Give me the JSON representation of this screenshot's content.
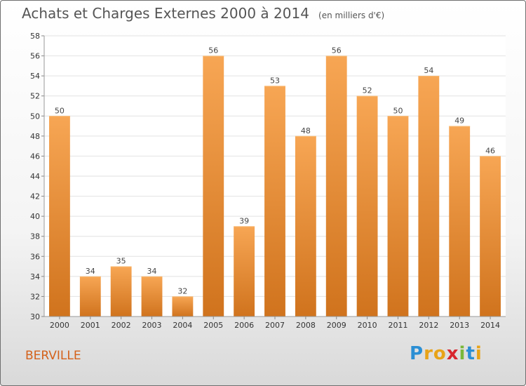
{
  "header": {
    "title": "Achats et Charges Externes 2000 à 2014",
    "unit": "(en milliers d'€)"
  },
  "place": "BERVILLE",
  "logo": {
    "letters": [
      "P",
      "r",
      "o",
      "x",
      "i",
      "t",
      "i"
    ],
    "colors": [
      "#2b8fd4",
      "#e8a317",
      "#e8a317",
      "#d8262e",
      "#7ab83a",
      "#2b8fd4",
      "#e8a317"
    ]
  },
  "colors": {
    "bar_top": "#f7a654",
    "bar_bottom": "#d0731d",
    "grid": "#e2e2e2",
    "title": "#555555",
    "place": "#d4611a"
  },
  "chart_data": {
    "type": "bar",
    "categories": [
      "2000",
      "2001",
      "2002",
      "2003",
      "2004",
      "2005",
      "2006",
      "2007",
      "2008",
      "2009",
      "2010",
      "2011",
      "2012",
      "2013",
      "2014"
    ],
    "values": [
      50,
      34,
      35,
      34,
      32,
      56,
      39,
      53,
      48,
      56,
      52,
      50,
      54,
      49,
      46
    ],
    "title": "Achats et Charges Externes 2000 à 2014",
    "xlabel": "",
    "ylabel": "",
    "ylim": [
      30,
      58
    ],
    "yticks": [
      30,
      32,
      34,
      36,
      38,
      40,
      42,
      44,
      46,
      48,
      50,
      52,
      54,
      56,
      58
    ],
    "grid": true,
    "data_labels": true
  }
}
